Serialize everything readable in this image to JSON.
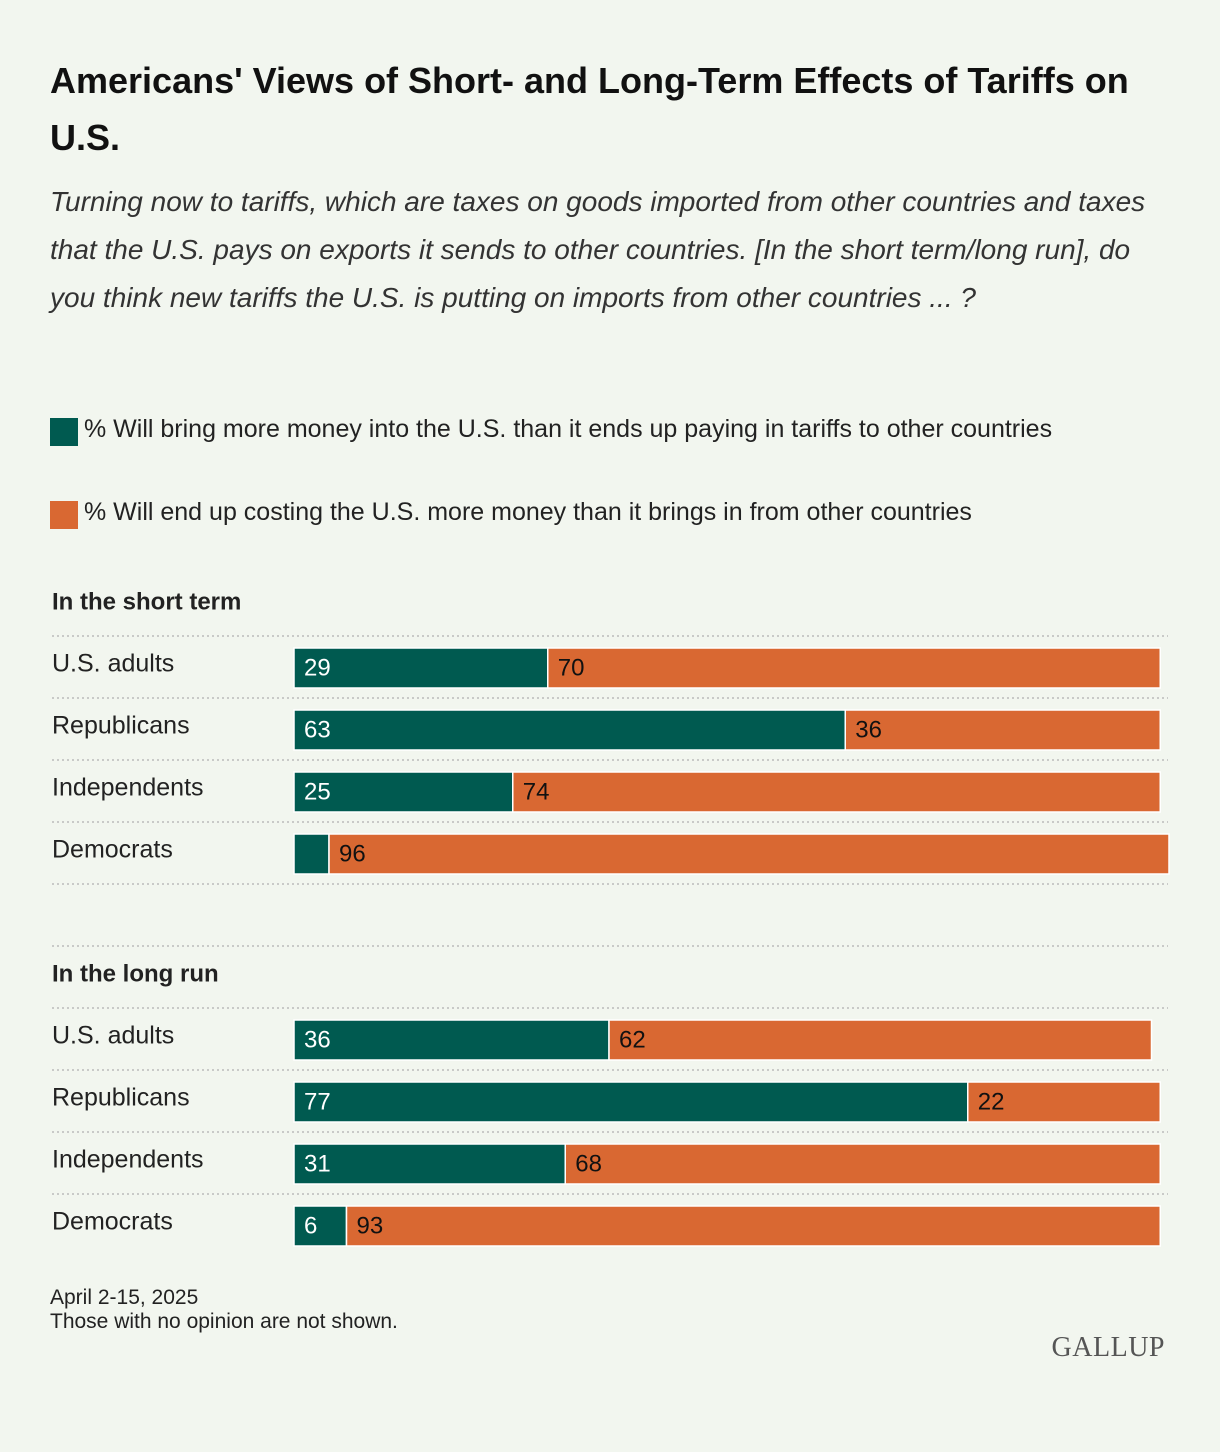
{
  "title": "Americans' Views of Short- and Long-Term Effects of Tariffs on U.S.",
  "subtitle": "Turning now to tariffs, which are taxes on goods imported from other countries and taxes that the U.S. pays on exports it sends to other countries. [In the short term/long run], do you think new tariffs the U.S. is putting on imports from other countries ... ?",
  "notes": [
    "April 2-15, 2025",
    "Those with no opinion are not shown."
  ],
  "logo": "GALLUP",
  "chart_data": [
    {
      "type": "stacked-bar",
      "orientation": "horizontal",
      "title": "In the short term",
      "categories": [
        "U.S. adults",
        "Republicans",
        "Independents",
        "Democrats"
      ],
      "xlim": [
        0,
        100
      ],
      "series": [
        {
          "name": "% Will bring more money into the U.S. than it ends up paying in tariffs to other countries",
          "color": "#005a50",
          "values": [
            29,
            63,
            25,
            4
          ],
          "value_labels": [
            "29",
            "63",
            "25",
            null
          ]
        },
        {
          "name": "% Will end up costing the U.S. more money than it brings in from other countries",
          "color": "#d96832",
          "values": [
            70,
            36,
            74,
            96
          ]
        }
      ]
    },
    {
      "type": "stacked-bar",
      "orientation": "horizontal",
      "title": "In the long run",
      "categories": [
        "U.S. adults",
        "Republicans",
        "Independents",
        "Democrats"
      ],
      "xlim": [
        0,
        100
      ],
      "series": [
        {
          "color": "#005a50",
          "values": [
            36,
            77,
            31,
            6
          ]
        },
        {
          "color": "#d96832",
          "values": [
            62,
            22,
            68,
            93
          ]
        }
      ]
    }
  ]
}
